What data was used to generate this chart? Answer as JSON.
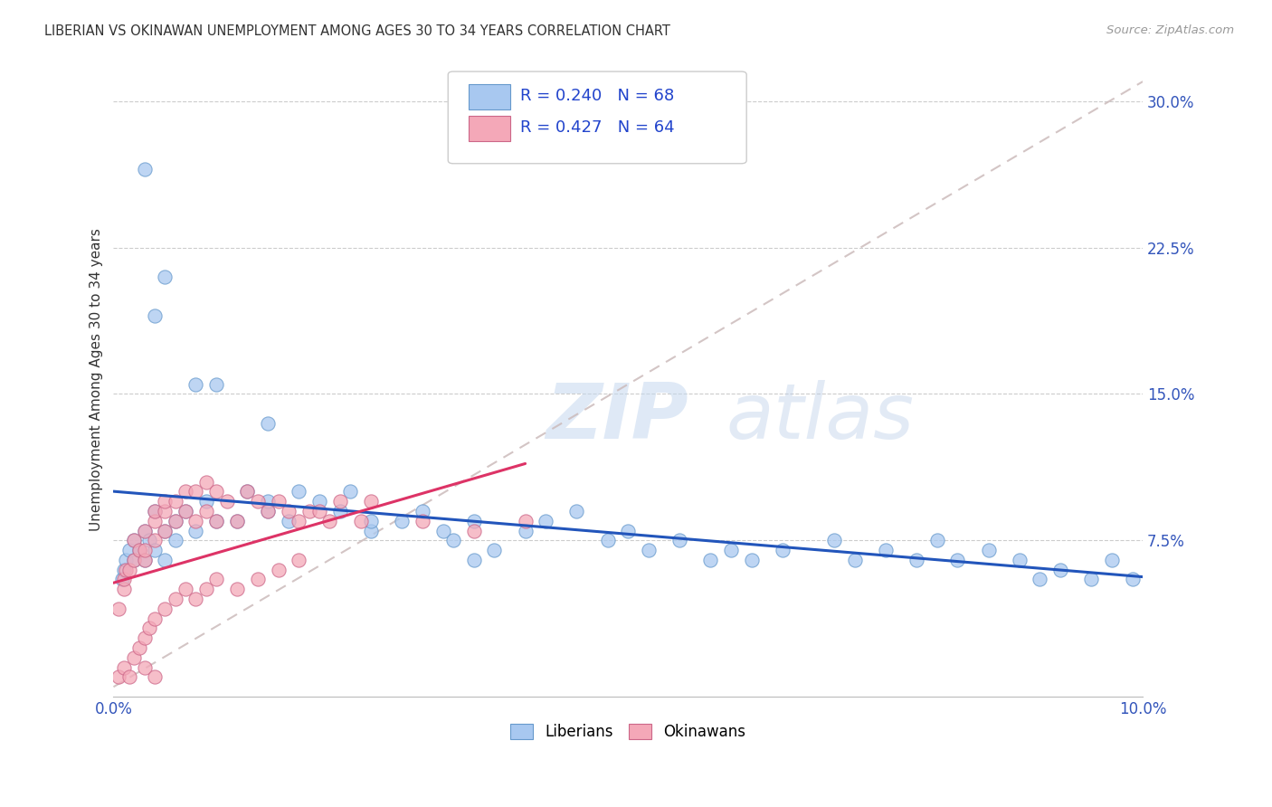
{
  "title": "LIBERIAN VS OKINAWAN UNEMPLOYMENT AMONG AGES 30 TO 34 YEARS CORRELATION CHART",
  "source": "Source: ZipAtlas.com",
  "ylabel": "Unemployment Among Ages 30 to 34 years",
  "yticks": [
    "7.5%",
    "15.0%",
    "22.5%",
    "30.0%"
  ],
  "ytick_vals": [
    0.075,
    0.15,
    0.225,
    0.3
  ],
  "xlim": [
    0.0,
    0.1
  ],
  "ylim": [
    -0.005,
    0.32
  ],
  "watermark_zip": "ZIP",
  "watermark_atlas": "atlas",
  "liberian_color": "#a8c8f0",
  "liberian_edge_color": "#6699cc",
  "okinawan_color": "#f4a8b8",
  "okinawan_edge_color": "#cc6688",
  "liberian_line_color": "#2255bb",
  "okinawan_line_color": "#dd3366",
  "dashed_line_color": "#ccbbbb",
  "legend_R_liberian": "R = 0.240",
  "legend_N_liberian": "N = 68",
  "legend_R_okinawan": "R = 0.427",
  "legend_N_okinawan": "N = 64",
  "liberian_x": [
    0.0008,
    0.001,
    0.0012,
    0.0015,
    0.002,
    0.002,
    0.0025,
    0.003,
    0.003,
    0.0035,
    0.004,
    0.004,
    0.005,
    0.005,
    0.006,
    0.006,
    0.007,
    0.008,
    0.009,
    0.01,
    0.012,
    0.013,
    0.015,
    0.015,
    0.017,
    0.018,
    0.02,
    0.022,
    0.023,
    0.025,
    0.028,
    0.03,
    0.032,
    0.033,
    0.035,
    0.037,
    0.04,
    0.042,
    0.045,
    0.048,
    0.05,
    0.052,
    0.055,
    0.058,
    0.06,
    0.062,
    0.065,
    0.07,
    0.072,
    0.075,
    0.078,
    0.08,
    0.082,
    0.085,
    0.088,
    0.09,
    0.092,
    0.095,
    0.097,
    0.099,
    0.003,
    0.004,
    0.005,
    0.008,
    0.01,
    0.015,
    0.025,
    0.035
  ],
  "liberian_y": [
    0.055,
    0.06,
    0.065,
    0.07,
    0.065,
    0.075,
    0.07,
    0.065,
    0.08,
    0.075,
    0.07,
    0.09,
    0.065,
    0.08,
    0.085,
    0.075,
    0.09,
    0.08,
    0.095,
    0.085,
    0.085,
    0.1,
    0.09,
    0.095,
    0.085,
    0.1,
    0.095,
    0.09,
    0.1,
    0.08,
    0.085,
    0.09,
    0.08,
    0.075,
    0.085,
    0.07,
    0.08,
    0.085,
    0.09,
    0.075,
    0.08,
    0.07,
    0.075,
    0.065,
    0.07,
    0.065,
    0.07,
    0.075,
    0.065,
    0.07,
    0.065,
    0.075,
    0.065,
    0.07,
    0.065,
    0.055,
    0.06,
    0.055,
    0.065,
    0.055,
    0.265,
    0.19,
    0.21,
    0.155,
    0.155,
    0.135,
    0.085,
    0.065
  ],
  "okinawan_x": [
    0.0005,
    0.001,
    0.001,
    0.0012,
    0.0015,
    0.002,
    0.002,
    0.0025,
    0.003,
    0.003,
    0.003,
    0.004,
    0.004,
    0.004,
    0.005,
    0.005,
    0.005,
    0.006,
    0.006,
    0.007,
    0.007,
    0.008,
    0.008,
    0.009,
    0.009,
    0.01,
    0.01,
    0.011,
    0.012,
    0.013,
    0.014,
    0.015,
    0.016,
    0.017,
    0.018,
    0.019,
    0.02,
    0.021,
    0.022,
    0.024,
    0.0005,
    0.001,
    0.0015,
    0.002,
    0.003,
    0.004,
    0.0025,
    0.003,
    0.0035,
    0.004,
    0.005,
    0.006,
    0.007,
    0.008,
    0.009,
    0.01,
    0.012,
    0.014,
    0.016,
    0.018,
    0.025,
    0.03,
    0.035,
    0.04
  ],
  "okinawan_y": [
    0.04,
    0.05,
    0.055,
    0.06,
    0.06,
    0.065,
    0.075,
    0.07,
    0.065,
    0.07,
    0.08,
    0.075,
    0.085,
    0.09,
    0.08,
    0.09,
    0.095,
    0.085,
    0.095,
    0.09,
    0.1,
    0.085,
    0.1,
    0.09,
    0.105,
    0.085,
    0.1,
    0.095,
    0.085,
    0.1,
    0.095,
    0.09,
    0.095,
    0.09,
    0.085,
    0.09,
    0.09,
    0.085,
    0.095,
    0.085,
    0.005,
    0.01,
    0.005,
    0.015,
    0.01,
    0.005,
    0.02,
    0.025,
    0.03,
    0.035,
    0.04,
    0.045,
    0.05,
    0.045,
    0.05,
    0.055,
    0.05,
    0.055,
    0.06,
    0.065,
    0.095,
    0.085,
    0.08,
    0.085
  ]
}
